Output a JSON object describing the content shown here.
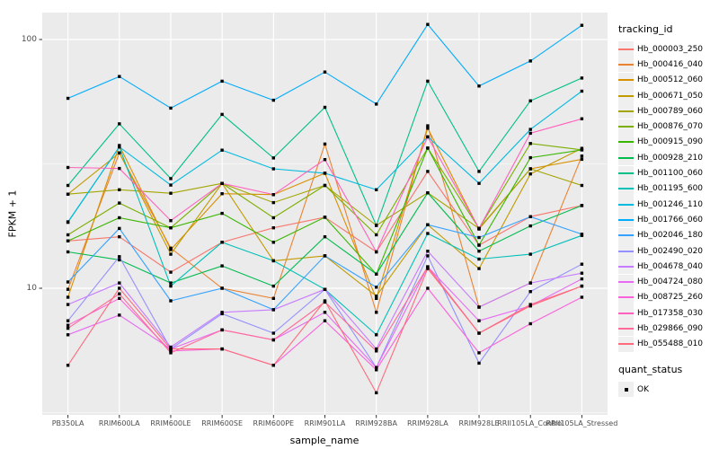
{
  "figure": {
    "background": "#FFFFFF",
    "panel_background": "#EBEBEB",
    "grid_color": "#FFFFFF",
    "tick_color": "#333333",
    "tick_label_color": "#4D4D4D"
  },
  "axes": {
    "x": {
      "title": "sample_name"
    },
    "y": {
      "title": "FPKM + 1",
      "tick_labels": [
        "100",
        "10"
      ],
      "tick_values": [
        100,
        10
      ]
    }
  },
  "legend": {
    "tracking_title": "tracking_id",
    "quant_title": "quant_status",
    "quant_items": [
      {
        "label": "OK",
        "symbol": "black-square"
      }
    ]
  },
  "chart_data": {
    "type": "line",
    "xlabel": "sample_name",
    "ylabel": "FPKM + 1",
    "y_scale": "log10",
    "ylim": [
      3.05,
      128
    ],
    "y_major_ticks": [
      10,
      100
    ],
    "y_minor_gridlines": [
      3.162,
      31.62
    ],
    "grid": true,
    "legend_position": "right",
    "legend_title": "tracking_id",
    "point_shape": "filled-square",
    "point_color": "#000000",
    "quant_status": "OK",
    "x_categories": [
      "PB350LA",
      "RRIM600LA",
      "RRIM600LE",
      "RRIM600SE",
      "RRIM600PE",
      "RRIM901LA",
      "RRIM928BA",
      "RRIM928LA",
      "RRIM928LE",
      "RRII105LA_Control",
      "RRII105LA_Stressed"
    ],
    "series": [
      {
        "name": "Hb_000003_250",
        "color": "#F8766D",
        "values": [
          15.5,
          16.1,
          11.6,
          15.3,
          17.5,
          19.3,
          14.0,
          29.5,
          14.9,
          19.4,
          21.5
        ]
      },
      {
        "name": "Hb_000416_040",
        "color": "#EA8331",
        "values": [
          9.9,
          35.0,
          14.5,
          10.0,
          9.1,
          38.0,
          8.0,
          45.0,
          8.4,
          10.5,
          34.0
        ]
      },
      {
        "name": "Hb_000512_060",
        "color": "#D89000",
        "values": [
          9.2,
          37.5,
          14.3,
          24.0,
          23.8,
          29.0,
          9.1,
          44.0,
          17.3,
          30.2,
          33.0
        ]
      },
      {
        "name": "Hb_000671_050",
        "color": "#C09B00",
        "values": [
          23.9,
          35.0,
          13.7,
          26.4,
          12.9,
          13.5,
          9.3,
          18.0,
          12.0,
          28.8,
          36.5
        ]
      },
      {
        "name": "Hb_000789_060",
        "color": "#A3A500",
        "values": [
          23.9,
          24.9,
          24.1,
          26.4,
          22.1,
          25.9,
          17.9,
          24.2,
          17.4,
          30.2,
          25.9
        ]
      },
      {
        "name": "Hb_000876_070",
        "color": "#7CAE00",
        "values": [
          16.4,
          22.0,
          17.5,
          26.4,
          19.2,
          25.9,
          16.4,
          36.6,
          17.4,
          38.2,
          36.0
        ]
      },
      {
        "name": "Hb_000915_090",
        "color": "#39B600",
        "values": [
          15.5,
          19.2,
          17.5,
          20.0,
          15.3,
          19.3,
          11.4,
          36.6,
          14.9,
          33.5,
          36.0
        ]
      },
      {
        "name": "Hb_000928_210",
        "color": "#00BB4E",
        "values": [
          14.0,
          13.0,
          10.5,
          12.3,
          10.2,
          16.1,
          11.4,
          24.2,
          14.1,
          17.8,
          21.5
        ]
      },
      {
        "name": "Hb_001100_060",
        "color": "#00C087",
        "values": [
          25.9,
          45.8,
          27.6,
          50.0,
          33.4,
          53.4,
          17.9,
          68.0,
          29.5,
          56.7,
          70.0
        ]
      },
      {
        "name": "Hb_001195_600",
        "color": "#00C0B8",
        "values": [
          18.4,
          37.0,
          10.2,
          15.3,
          12.9,
          9.9,
          6.5,
          16.6,
          13.1,
          13.7,
          16.3
        ]
      },
      {
        "name": "Hb_001246_110",
        "color": "#00BAE0",
        "values": [
          18.5,
          37.0,
          26.0,
          35.9,
          30.2,
          29.0,
          24.9,
          40.6,
          26.4,
          43.5,
          62.0
        ]
      },
      {
        "name": "Hb_001766_060",
        "color": "#00ACFC",
        "values": [
          58.0,
          71.0,
          53.0,
          68.0,
          57.0,
          74.0,
          55.0,
          115.0,
          65.0,
          82.0,
          114.0
        ]
      },
      {
        "name": "Hb_002046_180",
        "color": "#35A2FF",
        "values": [
          10.6,
          17.4,
          8.9,
          10.0,
          8.2,
          13.5,
          10.1,
          18.0,
          16.0,
          19.4,
          16.5
        ]
      },
      {
        "name": "Hb_002490_020",
        "color": "#9590FF",
        "values": [
          7.4,
          13.4,
          5.7,
          7.9,
          6.6,
          9.9,
          4.8,
          13.5,
          5.0,
          9.7,
          12.5
        ]
      },
      {
        "name": "Hb_004678_040",
        "color": "#C77CFF",
        "values": [
          8.6,
          10.5,
          5.8,
          8.0,
          8.2,
          9.9,
          5.7,
          14.1,
          8.4,
          10.5,
          11.5
        ]
      },
      {
        "name": "Hb_004724_080",
        "color": "#E76BF3",
        "values": [
          6.5,
          7.8,
          5.7,
          6.8,
          6.2,
          8.0,
          4.8,
          12.2,
          7.4,
          8.5,
          10.9
        ]
      },
      {
        "name": "Hb_008725_260",
        "color": "#FA62DB",
        "values": [
          7.1,
          9.1,
          5.6,
          5.7,
          4.9,
          7.4,
          4.7,
          10.0,
          5.5,
          7.2,
          9.2
        ]
      },
      {
        "name": "Hb_017358_030",
        "color": "#FF62BC",
        "values": [
          30.6,
          30.3,
          18.7,
          26.4,
          23.8,
          32.9,
          14.0,
          40.6,
          17.4,
          42.0,
          48.0
        ]
      },
      {
        "name": "Hb_029866_090",
        "color": "#FF6A98",
        "values": [
          6.9,
          9.5,
          5.5,
          6.8,
          6.2,
          8.8,
          5.6,
          12.2,
          6.6,
          8.6,
          10.2
        ]
      },
      {
        "name": "Hb_055488_010",
        "color": "#FD6B7D",
        "values": [
          4.9,
          10.0,
          5.7,
          5.7,
          4.9,
          8.9,
          3.8,
          12.0,
          6.6,
          8.5,
          10.2
        ]
      }
    ]
  }
}
